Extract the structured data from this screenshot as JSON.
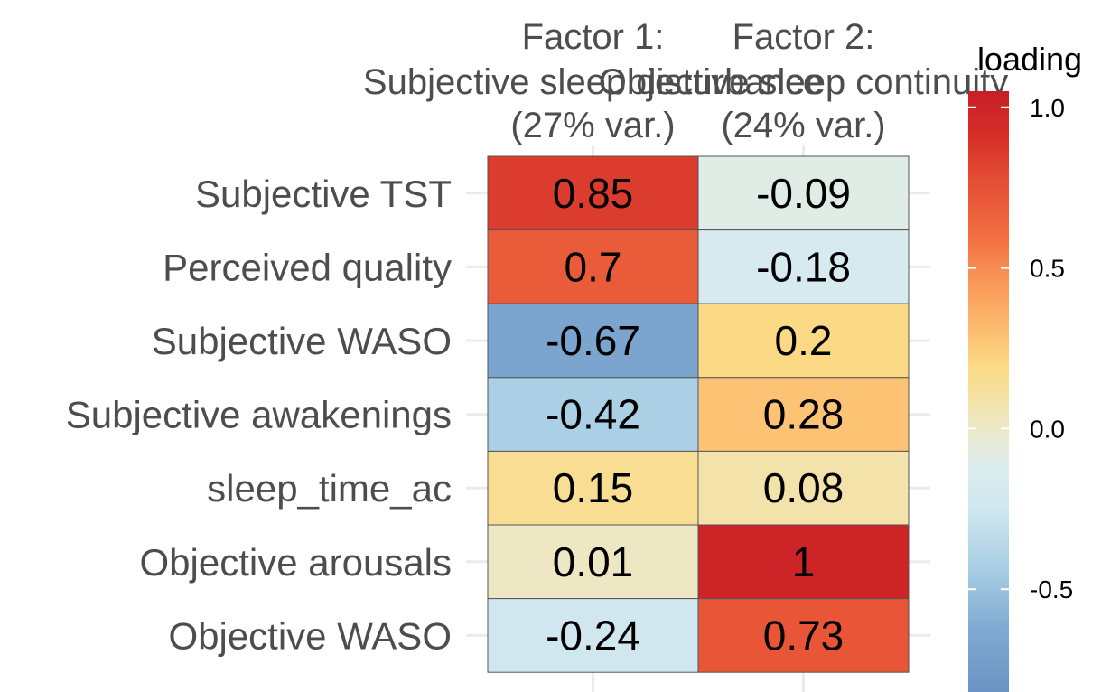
{
  "chart_data": {
    "type": "heatmap",
    "title": "",
    "columns": [
      {
        "line1": "Factor 1:",
        "line2": "Subjective sleep disturbance",
        "line3": "(27% var.)"
      },
      {
        "line1": "Factor 2:",
        "line2": "Objective sleep continuity",
        "line3": "(24% var.)"
      }
    ],
    "rows": [
      "Subjective TST",
      "Perceived quality",
      "Subjective WASO",
      "Subjective awakenings",
      "sleep_time_ac",
      "Objective arousals",
      "Objective WASO"
    ],
    "values": [
      [
        0.85,
        -0.09
      ],
      [
        0.7,
        -0.18
      ],
      [
        -0.67,
        0.2
      ],
      [
        -0.42,
        0.28
      ],
      [
        0.15,
        0.08
      ],
      [
        0.01,
        1
      ],
      [
        -0.24,
        0.73
      ]
    ],
    "cell_labels": [
      [
        "0.85",
        "-0.09"
      ],
      [
        "0.7",
        "-0.18"
      ],
      [
        "-0.67",
        "0.2"
      ],
      [
        "-0.42",
        "0.28"
      ],
      [
        "0.15",
        "0.08"
      ],
      [
        "0.01",
        "1"
      ],
      [
        "-0.24",
        "0.73"
      ]
    ],
    "color_scale": {
      "title": "loading",
      "palette": "RdYlBu (reversed)",
      "domain": [
        -0.82,
        1.05
      ],
      "breaks": [
        1.0,
        0.5,
        0.0,
        -0.5
      ],
      "break_labels": [
        "1.0",
        "0.5",
        "0.0",
        "-0.5"
      ],
      "stops": [
        {
          "v": -0.82,
          "c": "#6b93c4"
        },
        {
          "v": -0.62,
          "c": "#80abd2"
        },
        {
          "v": -0.45,
          "c": "#a5cce3"
        },
        {
          "v": -0.25,
          "c": "#cfe7ef"
        },
        {
          "v": -0.12,
          "c": "#dcedef"
        },
        {
          "v": -0.05,
          "c": "#e6ebd9"
        },
        {
          "v": 0.0,
          "c": "#ece8c6"
        },
        {
          "v": 0.05,
          "c": "#f1e6b8"
        },
        {
          "v": 0.12,
          "c": "#f6df9a"
        },
        {
          "v": 0.2,
          "c": "#fcd985"
        },
        {
          "v": 0.3,
          "c": "#fdbe70"
        },
        {
          "v": 0.45,
          "c": "#f99a58"
        },
        {
          "v": 0.6,
          "c": "#f26d41"
        },
        {
          "v": 0.78,
          "c": "#e44c33"
        },
        {
          "v": 0.9,
          "c": "#d73129"
        },
        {
          "v": 1.05,
          "c": "#c81e26"
        }
      ],
      "out_of_range_color": "#6d6d6d"
    },
    "legend_position": "right",
    "grid": true
  }
}
